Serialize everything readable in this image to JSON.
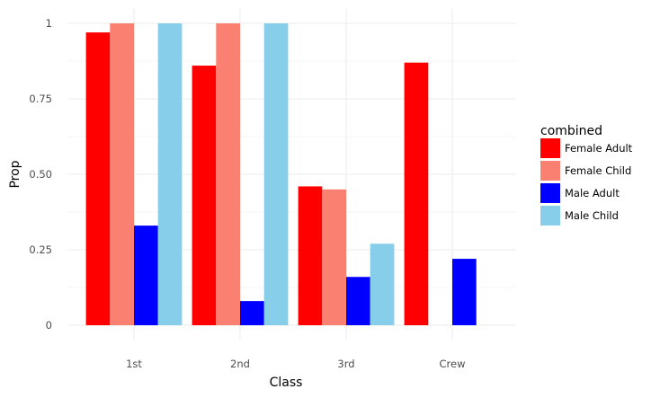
{
  "chart_data": {
    "type": "bar",
    "xlabel": "Class",
    "ylabel": "Prop",
    "ylim": [
      0,
      1.0
    ],
    "y_ticks": [
      0,
      0.25,
      0.5,
      0.75,
      1
    ],
    "y_tick_labels": [
      "0",
      "0.25",
      "0.50",
      "0.75",
      "1"
    ],
    "categories": [
      "1st",
      "2nd",
      "3rd",
      "Crew"
    ],
    "grid": true,
    "legend": {
      "title": "combined",
      "placement": "right"
    },
    "series": [
      {
        "name": "Female Adult",
        "color": "#ff0000",
        "values": [
          0.97,
          0.86,
          0.46,
          0.87
        ]
      },
      {
        "name": "Female Child",
        "color": "#fa8072",
        "values": [
          1.0,
          1.0,
          0.45,
          null
        ]
      },
      {
        "name": "Male Adult",
        "color": "#0000ff",
        "values": [
          0.33,
          0.08,
          0.16,
          0.22
        ]
      },
      {
        "name": "Male Child",
        "color": "#87ceeb",
        "values": [
          1.0,
          1.0,
          0.27,
          null
        ]
      }
    ]
  }
}
